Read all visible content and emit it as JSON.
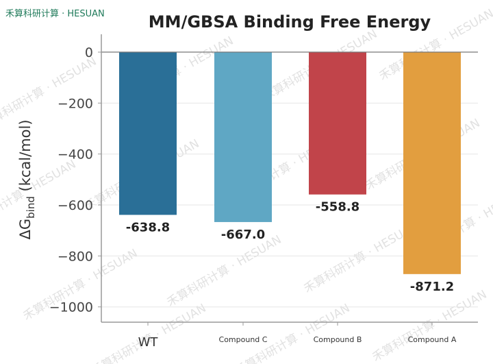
{
  "brand": "禾算科研计算 · HESUAN",
  "watermark_text": "禾算科研计算 · HESUAN",
  "chart_data": {
    "type": "bar",
    "title": "MM/GBSA Binding Free Energy",
    "ylabel": "ΔG",
    "ylabel_sub": "bind",
    "ylabel_unit": " (kcal/mol)",
    "xlabel": "",
    "categories": [
      "WT",
      "Compound C",
      "Compound B",
      "Compound A"
    ],
    "values": [
      -638.8,
      -667.0,
      -558.8,
      -871.2
    ],
    "value_labels": [
      "-638.8",
      "-667.0",
      "-558.8",
      "-871.2"
    ],
    "colors": [
      "#2a6f97",
      "#5fa7c4",
      "#c1444a",
      "#e29e3f"
    ],
    "ylim": [
      -1060,
      70
    ],
    "yticks": [
      0,
      -200,
      -400,
      -600,
      -800,
      -1000
    ],
    "ytick_labels": [
      "0",
      "−200",
      "−400",
      "−600",
      "−800",
      "−1000"
    ],
    "grid": true,
    "legend": false
  }
}
